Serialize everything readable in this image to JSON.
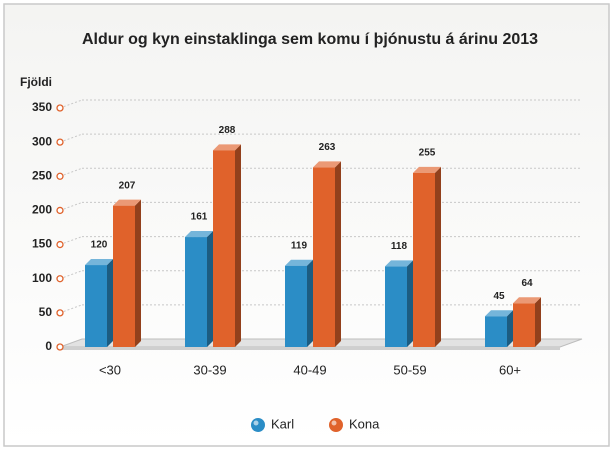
{
  "chart_data": {
    "type": "bar",
    "title": "Aldur og kyn einstaklinga sem komu í þjónustu á árinu 2013",
    "y_label": "Fjöldi",
    "categories": [
      "<30",
      "30-39",
      "40-49",
      "50-59",
      "60+"
    ],
    "series": [
      {
        "name": "Karl",
        "color": "#2b8dc6",
        "values": [
          120,
          161,
          119,
          118,
          45
        ]
      },
      {
        "name": "Kona",
        "color": "#e0622b",
        "values": [
          207,
          288,
          263,
          255,
          64
        ]
      }
    ],
    "ylim": [
      0,
      350
    ],
    "yticks": [
      0,
      50,
      100,
      150,
      200,
      250,
      300,
      350
    ],
    "grid": true,
    "legend": "bottom"
  }
}
